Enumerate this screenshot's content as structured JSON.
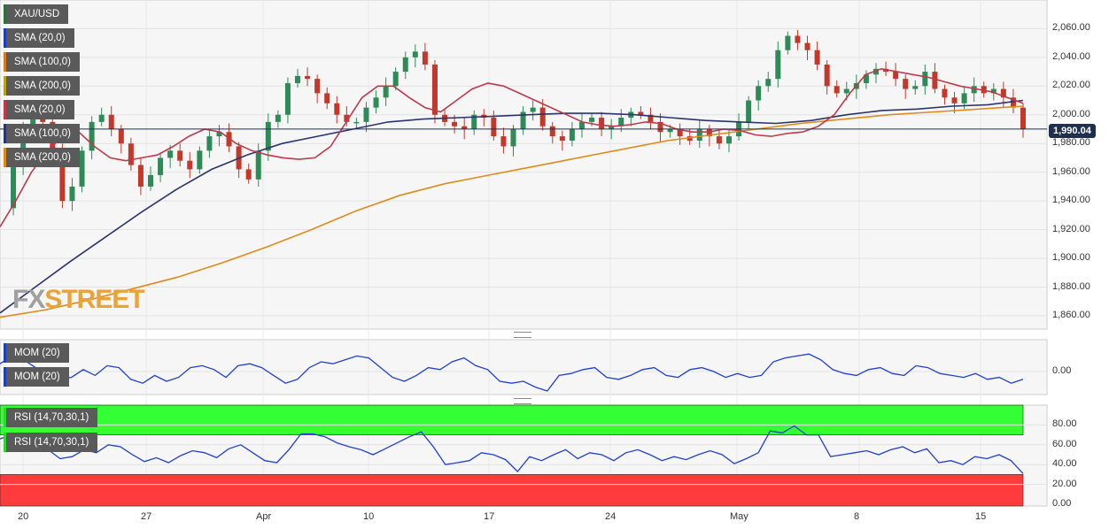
{
  "symbol": "XAU/USD",
  "price_badge": "1,990.04",
  "brand": {
    "part1": "FX",
    "part2": "STREET"
  },
  "legend_main": [
    {
      "label": "XAU/USD",
      "color": "#2d6e3a"
    },
    {
      "label": "SMA (20,0)",
      "color": "#1b3fbf"
    },
    {
      "label": "SMA (100,0)",
      "color": "#d97a1e"
    },
    {
      "label": "SMA (200,0)",
      "color": "#b8a21a"
    },
    {
      "label": "SMA (20,0)",
      "color": "#c0394a"
    },
    {
      "label": "SMA (100,0)",
      "color": "#2a3470"
    },
    {
      "label": "SMA (200,0)",
      "color": "#e08a1a"
    }
  ],
  "legend_mom": [
    {
      "label": "MOM (20)",
      "color": "#1b3fbf"
    },
    {
      "label": "MOM (20)",
      "color": "#1b3fbf"
    }
  ],
  "legend_rsi": [
    {
      "label": "RSI (14,70,30,1)",
      "color": "#2fd62f"
    },
    {
      "label": "RSI (14,70,30,1)",
      "color": "#2fd62f"
    }
  ],
  "colors": {
    "up": "#2e8b57",
    "down": "#c0392b",
    "sma20": "#c0394a",
    "sma100": "#2a3470",
    "sma200": "#e08a1a",
    "mom": "#1f3fd6",
    "rsi": "#1f3fd6",
    "overbought": "#33ff33",
    "oversold": "#ff3b3b"
  },
  "chart_data": [
    {
      "type": "candlestick",
      "title": "XAU/USD",
      "y_ticks": [
        "2,060.00",
        "2,040.00",
        "2,020.00",
        "2,000.00",
        "1,980.00",
        "1,960.00",
        "1,940.00",
        "1,920.00",
        "1,900.00",
        "1,880.00",
        "1,860.00"
      ],
      "ylim": [
        1852,
        2082
      ],
      "x_ticks": [
        "20",
        "27",
        "Apr",
        "10",
        "17",
        "24",
        "May",
        "8",
        "15"
      ],
      "last_price": 1990.04,
      "price_path": [
        1935,
        1965,
        1990,
        2000,
        1995,
        1975,
        1940,
        1950,
        1975,
        1995,
        2000,
        1990,
        1980,
        1965,
        1950,
        1958,
        1970,
        1975,
        1968,
        1962,
        1975,
        1985,
        1988,
        1978,
        1962,
        1955,
        1975,
        1995,
        2000,
        2022,
        2027,
        2025,
        2015,
        2008,
        2000,
        1995,
        1995,
        2005,
        2012,
        2020,
        2030,
        2040,
        2044,
        2035,
        2000,
        1995,
        1992,
        1990,
        2000,
        1998,
        1985,
        1978,
        1990,
        2002,
        2005,
        1992,
        1985,
        1982,
        1990,
        1995,
        1998,
        1990,
        1992,
        1998,
        2002,
        2000,
        1995,
        1988,
        1990,
        1985,
        1982,
        1990,
        1985,
        1980,
        1985,
        1995,
        2010,
        2020,
        2025,
        2045,
        2055,
        2050,
        2045,
        2035,
        2020,
        2015,
        2018,
        2022,
        2028,
        2032,
        2030,
        2025,
        2018,
        2020,
        2030,
        2018,
        2012,
        2008,
        2015,
        2020,
        2015,
        2018,
        2012,
        2005,
        1990
      ],
      "series": [
        {
          "name": "SMA (20,0)",
          "values": [
            1922,
            1940,
            1960,
            1975,
            1985,
            1988,
            1978,
            1970,
            1968,
            1970,
            1972,
            1978,
            1985,
            1990,
            1988,
            1980,
            1975,
            1972,
            1970,
            1969,
            1970,
            1978,
            1995,
            2012,
            2020,
            2020,
            2012,
            2005,
            2002,
            2010,
            2018,
            2022,
            2020,
            2015,
            2010,
            2005,
            2000,
            1995,
            1993,
            1992,
            1993,
            1995,
            1994,
            1990,
            1988,
            1988,
            1990,
            1989,
            1986,
            1985,
            1987,
            1988,
            1992,
            2000,
            2015,
            2028,
            2032,
            2030,
            2028,
            2026,
            2023,
            2020,
            2018,
            2016,
            2012,
            2008
          ]
        },
        {
          "name": "SMA (100,0)",
          "values": [
            1862,
            1880,
            1898,
            1915,
            1932,
            1948,
            1962,
            1972,
            1980,
            1985,
            1990,
            1995,
            1997,
            1998,
            1999,
            2000,
            2001,
            2001,
            2000,
            1998,
            1996,
            1995,
            1994,
            1996,
            2000,
            2003,
            2004,
            2006,
            2007,
            2010
          ]
        },
        {
          "name": "SMA (200,0)",
          "values": [
            1859,
            1864,
            1871,
            1879,
            1887,
            1897,
            1908,
            1920,
            1933,
            1944,
            1952,
            1958,
            1964,
            1970,
            1976,
            1982,
            1986,
            1990,
            1994,
            1997,
            2000,
            2002,
            2004,
            2006
          ]
        }
      ]
    },
    {
      "type": "line",
      "title": "MOM (20)",
      "y_ticks": [
        "0.00"
      ],
      "series": [
        {
          "name": "MOM (20)",
          "values": [
            0.4,
            0.8,
            0.6,
            0.2,
            0.1,
            -0.4,
            -0.3,
            0.1,
            -0.2,
            0.3,
            0.2,
            -0.4,
            -0.6,
            -0.2,
            -0.5,
            -0.3,
            0.2,
            0.3,
            0.1,
            -0.3,
            0.3,
            0.4,
            0.2,
            -0.2,
            -0.6,
            -0.4,
            0.2,
            0.5,
            0.4,
            0.6,
            0.8,
            0.7,
            0.2,
            -0.3,
            -0.5,
            -0.2,
            0.2,
            0.1,
            0.5,
            0.7,
            0.3,
            0.1,
            -0.5,
            -0.6,
            -0.5,
            -0.8,
            -1.0,
            -0.2,
            -0.1,
            0.1,
            0.2,
            -0.3,
            -0.4,
            -0.2,
            0.1,
            0.2,
            -0.2,
            -0.3,
            0.1,
            0.2,
            0.0,
            -0.3,
            -0.1,
            -0.3,
            -0.2,
            0.5,
            0.7,
            0.8,
            0.9,
            0.6,
            0.1,
            -0.1,
            -0.2,
            0.1,
            0.2,
            -0.1,
            -0.2,
            0.3,
            0.2,
            -0.1,
            -0.2,
            -0.3,
            -0.1,
            -0.4,
            -0.3,
            -0.6,
            -0.4
          ]
        }
      ]
    },
    {
      "type": "line",
      "title": "RSI (14,70,30,1)",
      "y_ticks": [
        "80.00",
        "60.00",
        "40.00",
        "20.00",
        "0.00"
      ],
      "ylim": [
        0,
        100
      ],
      "overbought": 70,
      "oversold": 30,
      "series": [
        {
          "name": "RSI (14,70,30,1)",
          "values": [
            66,
            70,
            64,
            58,
            55,
            46,
            48,
            55,
            52,
            60,
            58,
            50,
            43,
            47,
            42,
            49,
            54,
            52,
            47,
            56,
            60,
            52,
            44,
            42,
            55,
            71,
            71,
            68,
            62,
            58,
            55,
            50,
            56,
            62,
            68,
            73,
            58,
            40,
            42,
            44,
            52,
            50,
            45,
            33,
            48,
            44,
            50,
            55,
            46,
            52,
            50,
            44,
            52,
            55,
            50,
            44,
            48,
            45,
            50,
            54,
            50,
            41,
            46,
            52,
            74,
            72,
            79,
            70,
            70,
            48,
            50,
            52,
            54,
            50,
            55,
            58,
            52,
            56,
            42,
            44,
            40,
            48,
            46,
            50,
            44,
            31
          ]
        }
      ]
    }
  ]
}
